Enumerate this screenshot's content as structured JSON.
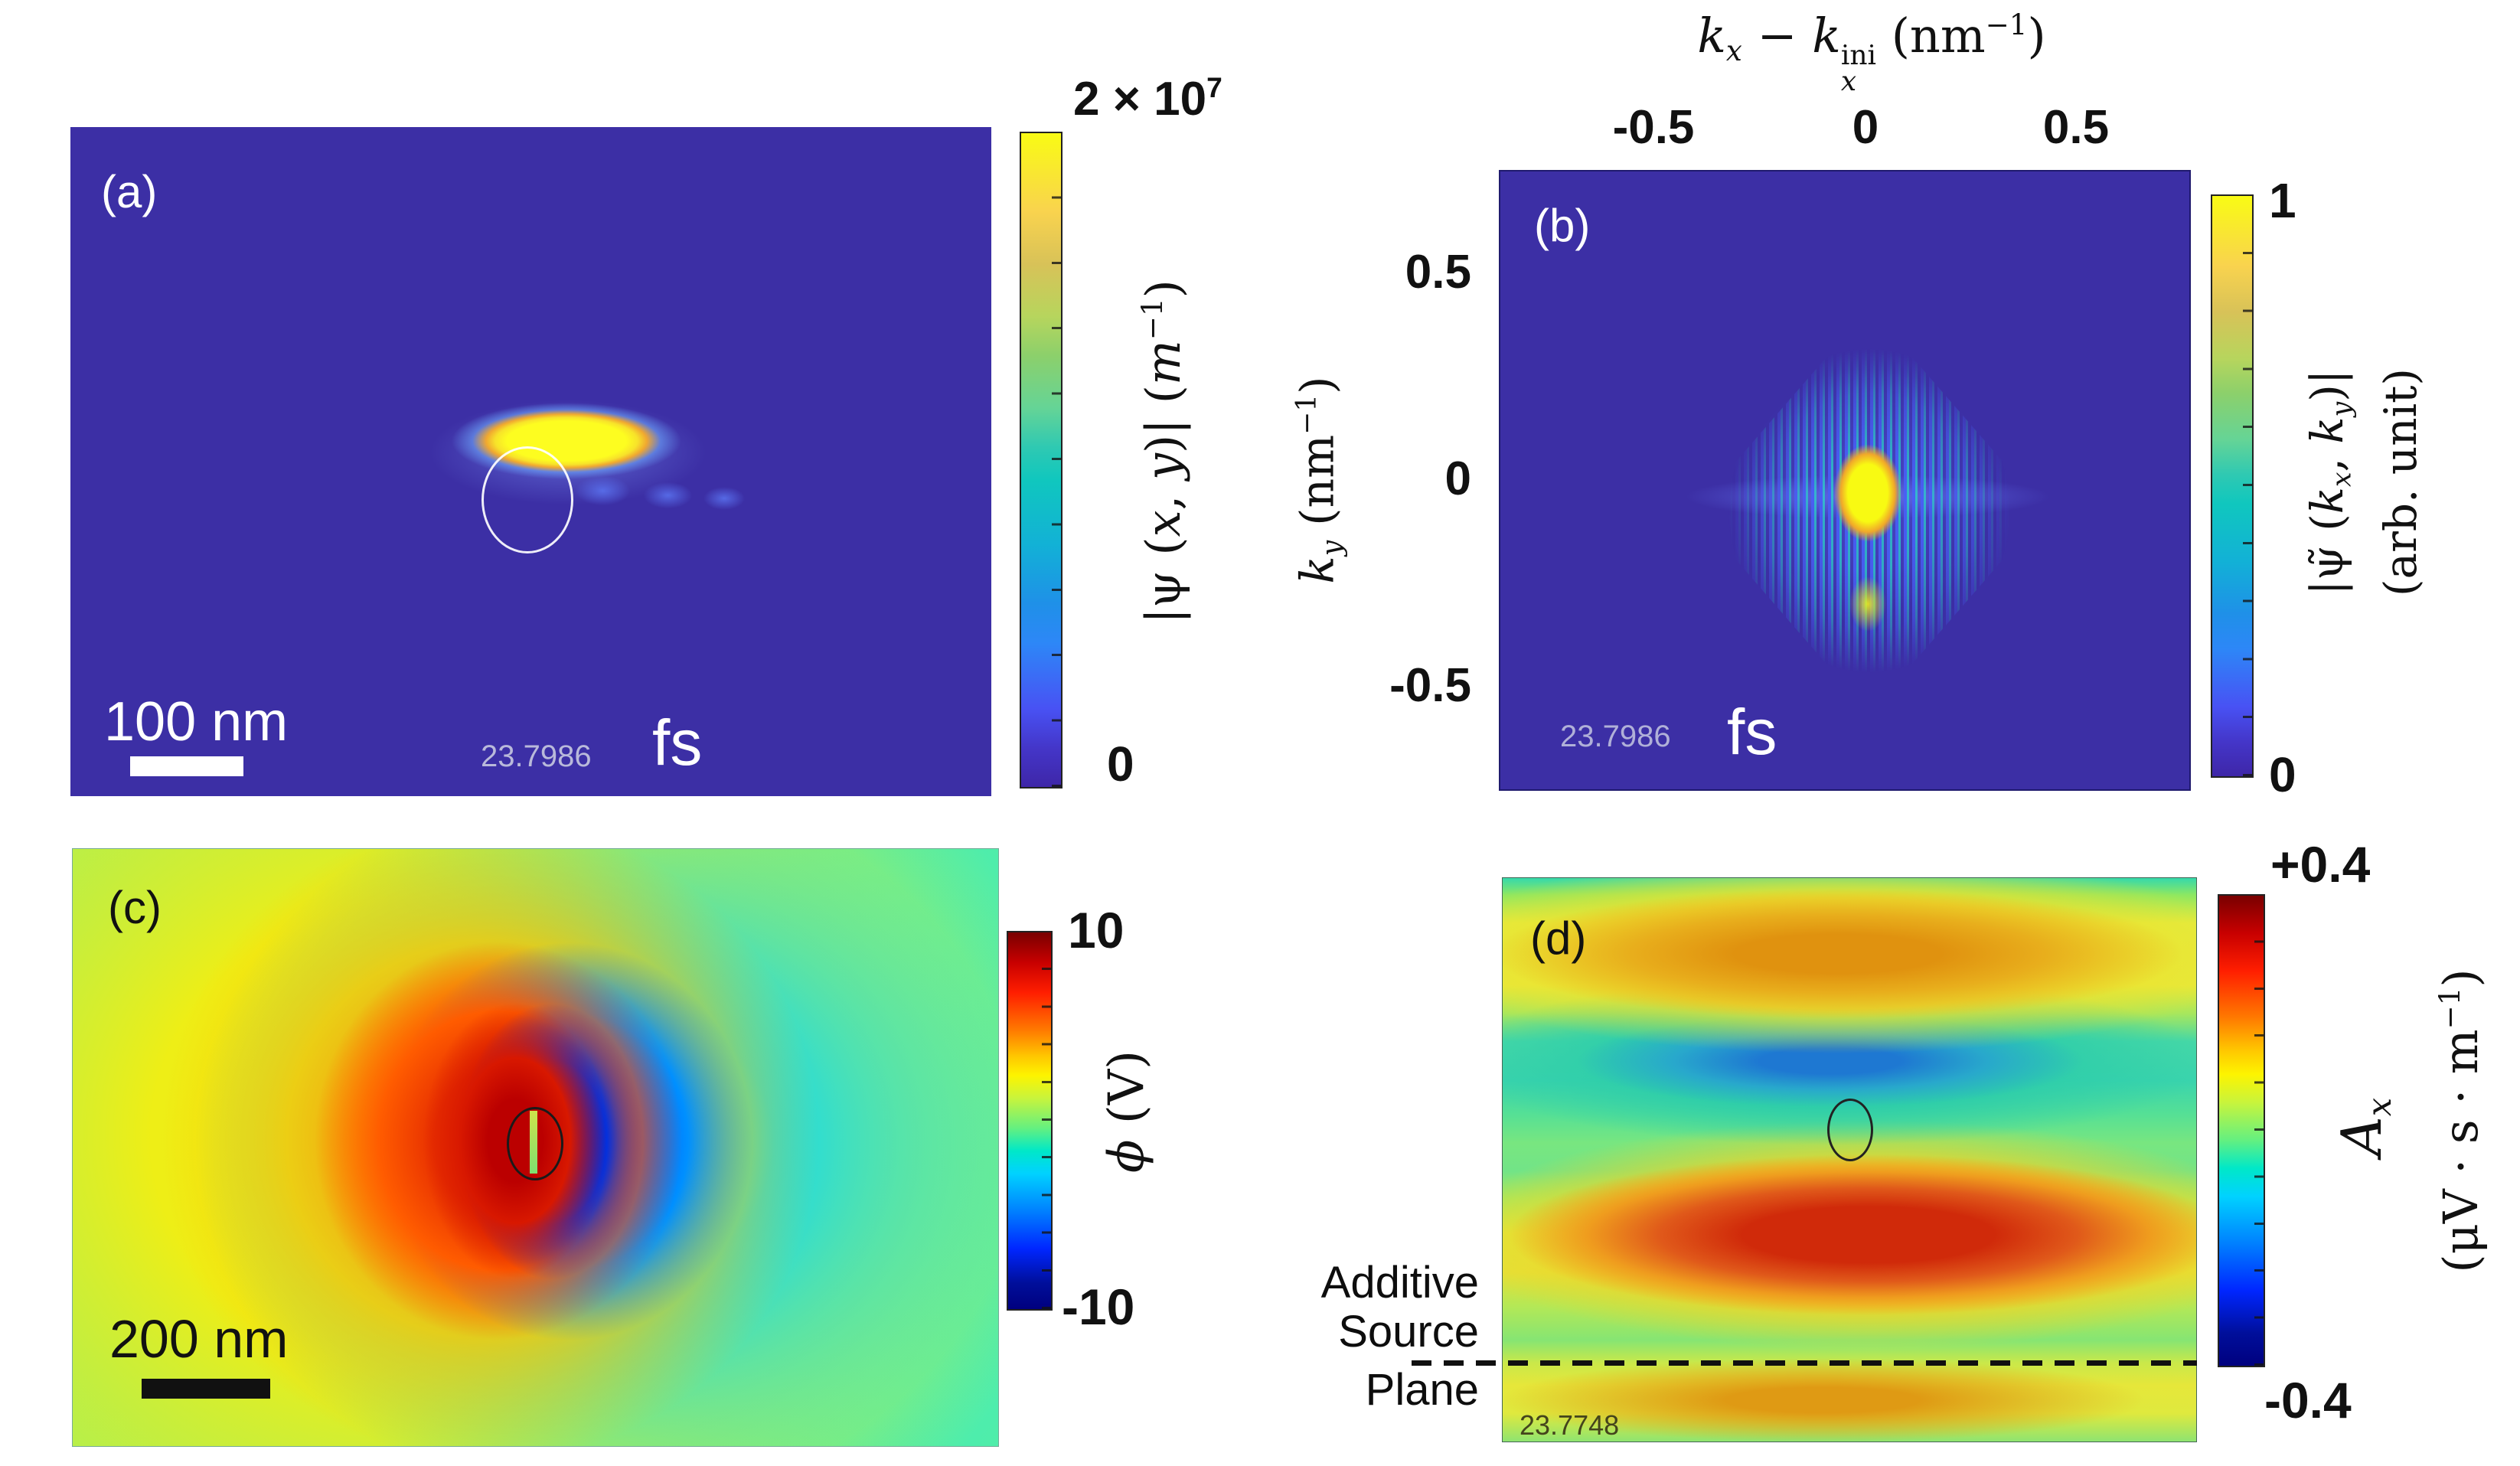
{
  "panel_a": {
    "label": "(a)",
    "scalebar": "100 nm",
    "time": "23.7986",
    "time_unit": "fs",
    "cb_top": [
      {
        "t": "2 × 10"
      },
      {
        "t": "7",
        "s": "sup"
      }
    ],
    "cb_bottom": "0",
    "cb_label": [
      {
        "t": "|ψ ("
      },
      {
        "t": "x",
        "s": "i"
      },
      {
        "t": ", "
      },
      {
        "t": "y",
        "s": "i"
      },
      {
        "t": ")| ("
      },
      {
        "t": "m",
        "s": "i"
      },
      {
        "t": "−1",
        "s": "sup"
      },
      {
        "t": ")"
      }
    ]
  },
  "panel_b": {
    "label": "(b)",
    "time": "23.7986",
    "time_unit": "fs",
    "xlabel": [
      {
        "t": "k",
        "s": "i"
      },
      {
        "t": "x",
        "s": "subi"
      },
      {
        "t": " − "
      },
      {
        "t": "k",
        "s": "i"
      },
      {
        "t": "x|ini",
        "s": "stack"
      },
      {
        "t": " (nm"
      },
      {
        "t": "−1",
        "s": "sup"
      },
      {
        "t": ")"
      }
    ],
    "xticks": [
      "-0.5",
      "0",
      "0.5"
    ],
    "yticks": [
      "0.5",
      "0",
      "-0.5"
    ],
    "ylabel": [
      {
        "t": "k",
        "s": "i"
      },
      {
        "t": "y",
        "s": "subi"
      },
      {
        "t": " (nm"
      },
      {
        "t": "−1",
        "s": "sup"
      },
      {
        "t": ")"
      }
    ],
    "cb_top": "1",
    "cb_bottom": "0",
    "cb_label1": [
      {
        "t": "|ψ̃ ("
      },
      {
        "t": "k",
        "s": "i"
      },
      {
        "t": "x",
        "s": "subi"
      },
      {
        "t": ", "
      },
      {
        "t": "k",
        "s": "i"
      },
      {
        "t": "y",
        "s": "subi"
      },
      {
        "t": ")|"
      }
    ],
    "cb_label2": [
      {
        "t": "(arb. unit)"
      }
    ]
  },
  "panel_c": {
    "label": "(c)",
    "scalebar": "200 nm",
    "cb_top": "10",
    "cb_bottom": "-10",
    "cb_label": [
      {
        "t": "ϕ",
        "s": "i"
      },
      {
        "t": " (V)"
      }
    ]
  },
  "panel_d": {
    "label": "(d)",
    "time": "23.7748",
    "cb_top": "+0.4",
    "cb_bottom": "-0.4",
    "cb_label1": [
      {
        "t": "A",
        "s": "i"
      },
      {
        "t": "x",
        "s": "subi"
      }
    ],
    "cb_label2": [
      {
        "t": "(μV · s · m"
      },
      {
        "t": "−1",
        "s": "sup"
      },
      {
        "t": ")"
      }
    ],
    "source_plane": [
      "Additive",
      "Source",
      "Plane"
    ]
  },
  "chart_data": [
    {
      "type": "heatmap",
      "panel": "a",
      "title": "",
      "colormap": "parula",
      "colorbar": {
        "min": 0,
        "max": 20000000,
        "tick_labels": [
          "0",
          "2 × 10^7"
        ],
        "label": "|ψ (x, y)| (m^-1)"
      },
      "scalebar": {
        "label": "100 nm"
      },
      "time": {
        "value": "23.7986",
        "unit": "fs"
      },
      "features": [
        "bright elongated yellow wavepacket slightly above image center",
        "thin white circle outline (nanostructure) overlapping the wavepacket bottom",
        "uniform dark indigo background (zero amplitude)"
      ]
    },
    {
      "type": "heatmap",
      "panel": "b",
      "title": "",
      "colormap": "parula",
      "x_axis": {
        "label": "k_x − k_x^ini (nm^-1)",
        "tick_labels": [
          "-0.5",
          "0",
          "0.5"
        ],
        "position": "top"
      },
      "y_axis": {
        "label": "k_y (nm^-1)",
        "tick_labels": [
          "0.5",
          "0",
          "-0.5"
        ]
      },
      "colorbar": {
        "min": 0,
        "max": 1,
        "tick_labels": [
          "0",
          "1"
        ],
        "label": "|ψ̃ (k_x, k_y)| (arb. unit)"
      },
      "time": {
        "value": "23.7986",
        "unit": "fs"
      },
      "features": [
        "diamond-shaped speckled interference pattern centered near (0,0)",
        "vertical fringe striations",
        "bright yellow maximum at center",
        "faint horizontal streak through ky = 0"
      ]
    },
    {
      "type": "heatmap",
      "panel": "c",
      "title": "",
      "colormap": "jet",
      "colorbar": {
        "min": -10,
        "max": 10,
        "tick_labels": [
          "-10",
          "10"
        ],
        "label": "ϕ (V)"
      },
      "scalebar": {
        "label": "200 nm"
      },
      "features": [
        "electric dipole potential: positive red/orange/yellow lobe on left, negative blue/cyan lobe on right",
        "small black circle outline at dipole center",
        "green background"
      ]
    },
    {
      "type": "heatmap",
      "panel": "d",
      "title": "",
      "colormap": "jet",
      "colorbar": {
        "min": -0.4,
        "max": 0.4,
        "tick_labels": [
          "-0.4",
          "+0.4"
        ],
        "label": "A_x (μV · s · m^-1)"
      },
      "time": {
        "value": "23.7748",
        "unit": ""
      },
      "features": [
        "horizontal standing-wave bands of A_x: orange band near top, blue/teal band, strong red band below center, orange band at bottom",
        "small black circle outline above the red band",
        "black dashed horizontal line labeled Additive Source Plane near bottom"
      ]
    }
  ]
}
